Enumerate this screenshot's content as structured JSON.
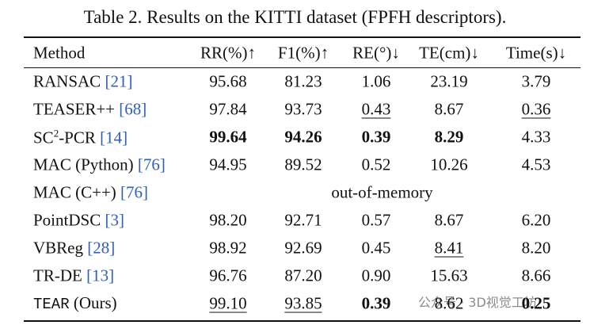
{
  "caption": "Table 2. Results on the KITTI dataset (FPFH descriptors).",
  "table": {
    "header": [
      "Method",
      "RR(%)↑",
      "F1(%)↑",
      "RE(°)↓",
      "TE(cm)↓",
      "Time(s)↓"
    ],
    "rows": [
      {
        "method": [
          {
            "text": "RANSAC "
          }
        ],
        "ref": "[21]",
        "cells": [
          {
            "text": "95.68"
          },
          {
            "text": "81.23"
          },
          {
            "text": "1.06"
          },
          {
            "text": "23.19"
          },
          {
            "text": "3.79"
          }
        ]
      },
      {
        "method": [
          {
            "text": "TEASER++ "
          }
        ],
        "ref": "[68]",
        "cells": [
          {
            "text": "97.84"
          },
          {
            "text": "93.73"
          },
          {
            "text": "0.43",
            "style": "underline"
          },
          {
            "text": "8.67"
          },
          {
            "text": "0.36",
            "style": "underline"
          }
        ]
      },
      {
        "method": [
          {
            "text": "SC"
          },
          {
            "text": "2",
            "sup": true
          },
          {
            "text": "-PCR "
          }
        ],
        "ref": "[14]",
        "cells": [
          {
            "text": "99.64",
            "style": "bold"
          },
          {
            "text": "94.26",
            "style": "bold"
          },
          {
            "text": "0.39",
            "style": "bold"
          },
          {
            "text": "8.29",
            "style": "bold"
          },
          {
            "text": "4.33"
          }
        ]
      },
      {
        "method": [
          {
            "text": "MAC (Python) "
          }
        ],
        "ref": "[76]",
        "cells": [
          {
            "text": "94.95"
          },
          {
            "text": "89.52"
          },
          {
            "text": "0.52"
          },
          {
            "text": "10.26"
          },
          {
            "text": "4.53"
          }
        ]
      },
      {
        "method": [
          {
            "text": "MAC (C++) "
          }
        ],
        "ref": "[76]",
        "span": "out-of-memory"
      },
      {
        "method": [
          {
            "text": "PointDSC "
          }
        ],
        "ref": "[3]",
        "cells": [
          {
            "text": "98.20"
          },
          {
            "text": "92.71"
          },
          {
            "text": "0.57"
          },
          {
            "text": "8.67"
          },
          {
            "text": "6.20"
          }
        ]
      },
      {
        "method": [
          {
            "text": "VBReg "
          }
        ],
        "ref": "[28]",
        "cells": [
          {
            "text": "98.92"
          },
          {
            "text": "92.69"
          },
          {
            "text": "0.45"
          },
          {
            "text": "8.41",
            "style": "underline"
          },
          {
            "text": "8.20"
          }
        ]
      },
      {
        "method": [
          {
            "text": "TR-DE "
          }
        ],
        "ref": "[13]",
        "cells": [
          {
            "text": "96.76"
          },
          {
            "text": "87.20"
          },
          {
            "text": "0.90"
          },
          {
            "text": "15.63"
          },
          {
            "text": "8.66"
          }
        ]
      },
      {
        "method": [
          {
            "text": "TEAR",
            "mono": true
          },
          {
            "text": " (Ours)"
          }
        ],
        "cells": [
          {
            "text": "99.10",
            "style": "underline"
          },
          {
            "text": "93.85",
            "style": "underline"
          },
          {
            "text": "0.39",
            "style": "bold"
          },
          {
            "text": "8.62"
          },
          {
            "text": "0.25",
            "style": "bold"
          }
        ]
      }
    ]
  },
  "watermark": "公众号 · 3D视觉工坊"
}
